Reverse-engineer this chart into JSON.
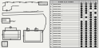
{
  "bg_color": "#f2f2ee",
  "table_rows": [
    {
      "part": "82122AA010",
      "checks": [
        1,
        1,
        1,
        1
      ]
    },
    {
      "part": "82199AA000",
      "checks": [
        1,
        1,
        1,
        1
      ]
    },
    {
      "part": "82199AA010",
      "checks": [
        1,
        1,
        1,
        1
      ]
    },
    {
      "part": "82199AA020 A",
      "checks": [
        1,
        1,
        0,
        0
      ]
    },
    {
      "part": "82122AA020",
      "checks": [
        1,
        1,
        1,
        1
      ]
    },
    {
      "part": "82122AA030 A",
      "checks": [
        1,
        0,
        1,
        0
      ]
    },
    {
      "part": "82199AA030",
      "checks": [
        1,
        1,
        1,
        1
      ]
    },
    {
      "part": "82199AA040 B",
      "checks": [
        0,
        0,
        1,
        1
      ]
    },
    {
      "part": "82122AA040",
      "checks": [
        1,
        1,
        1,
        1
      ]
    },
    {
      "part": "82199AA050",
      "checks": [
        1,
        1,
        1,
        1
      ]
    },
    {
      "part": "82199AA060",
      "checks": [
        1,
        1,
        1,
        1
      ]
    },
    {
      "part": "82199AA070",
      "checks": [
        1,
        1,
        1,
        1
      ]
    },
    {
      "part": "82122AA050",
      "checks": [
        1,
        1,
        1,
        1
      ]
    },
    {
      "part": "82199AA080",
      "checks": [
        1,
        1,
        1,
        1
      ]
    },
    {
      "part": "82199AA090",
      "checks": [
        1,
        1,
        1,
        1
      ]
    },
    {
      "part": "82199AA100",
      "checks": [
        1,
        1,
        1,
        1
      ]
    },
    {
      "part": "82199AA110",
      "checks": [
        1,
        1,
        1,
        1
      ]
    },
    {
      "part": "82199AA120",
      "checks": [
        1,
        1,
        1,
        1
      ]
    },
    {
      "part": "82199AA130",
      "checks": [
        1,
        1,
        1,
        1
      ]
    },
    {
      "part": "82199AA140",
      "checks": [
        1,
        1,
        1,
        1
      ]
    }
  ],
  "line_color": "#444444",
  "text_color": "#111111",
  "check_color": "#222222",
  "grid_color": "#999999",
  "header_bg": "#cccccc",
  "row_bg_odd": "#e8e8e4",
  "row_bg_even": "#f2f2ee"
}
